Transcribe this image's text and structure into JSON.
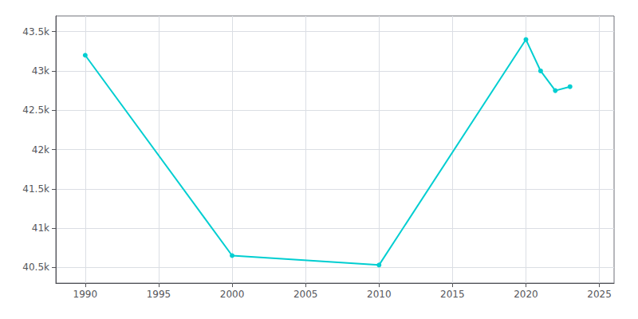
{
  "chart_data": {
    "type": "line",
    "x": [
      1990,
      2000,
      2010,
      2020,
      2021,
      2022,
      2023
    ],
    "values": [
      43200,
      40650,
      40530,
      43400,
      43000,
      42750,
      42800
    ],
    "color": "#00CED1",
    "marker": "circle",
    "xlim": [
      1988,
      2026
    ],
    "xticks": [
      1990,
      1995,
      2000,
      2005,
      2010,
      2015,
      2020,
      2025
    ],
    "ylim": [
      40300,
      43700
    ],
    "yticks": [
      {
        "value": 40500,
        "label": "40.5k"
      },
      {
        "value": 41000,
        "label": "41k"
      },
      {
        "value": 41500,
        "label": "41.5k"
      },
      {
        "value": 42000,
        "label": "42k"
      },
      {
        "value": 42500,
        "label": "42.5k"
      },
      {
        "value": 43000,
        "label": "43k"
      },
      {
        "value": 43500,
        "label": "43.5k"
      }
    ],
    "grid": true
  }
}
